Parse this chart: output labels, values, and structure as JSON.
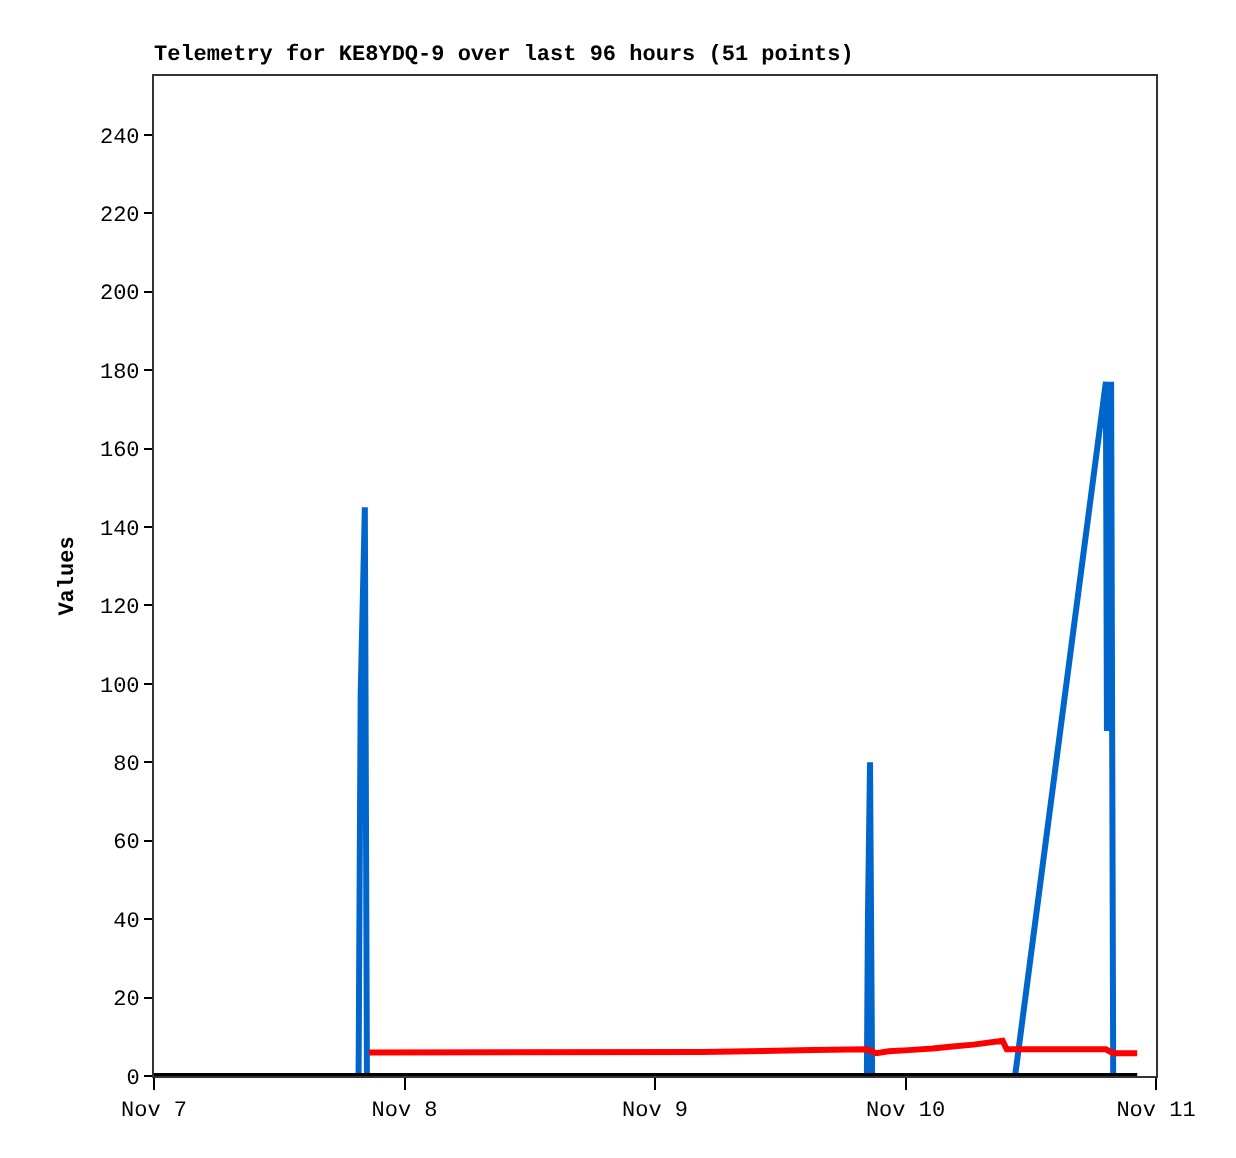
{
  "chart_data": {
    "type": "line",
    "title": "Telemetry for KE8YDQ-9 over last 96 hours (51 points)",
    "ylabel": "Values",
    "xlim": [
      "--11-07",
      "--11-11"
    ],
    "xticks": [
      {
        "value": "--11-07",
        "label": "Nov 7"
      },
      {
        "value": "--11-08",
        "label": "Nov 8"
      },
      {
        "value": "--11-09",
        "label": "Nov 9"
      },
      {
        "value": "--11-10",
        "label": "Nov 10"
      },
      {
        "value": "--11-11",
        "label": "Nov 11"
      }
    ],
    "ylim": [
      0,
      255
    ],
    "yticks": [
      0,
      20,
      40,
      60,
      80,
      100,
      120,
      140,
      160,
      180,
      200,
      220,
      240
    ],
    "grid": false,
    "marker": "none",
    "line_style": "solid",
    "series": [
      {
        "color": "#0066cc",
        "x": [
          "--11-07T19:36",
          "--11-07T19:42",
          "--11-07T19:48",
          "--11-07T20:12",
          "--11-07T20:24",
          "--11-09T20:18",
          "--11-09T20:24",
          "--11-09T20:36",
          "--11-09T20:48",
          "--11-10T10:30",
          "--11-10T19:12",
          "--11-10T19:18",
          "--11-10T19:30",
          "--11-10T19:42",
          "--11-10T19:54"
        ],
        "values": [
          0,
          49,
          97,
          145,
          0,
          0,
          40,
          80,
          0,
          0,
          177,
          88,
          112,
          177,
          0
        ]
      },
      {
        "color": "#ff0000",
        "x": [
          "--11-07T20:36",
          "--11-09T04:30",
          "--11-09T15:06",
          "--11-09T20:18",
          "--11-09T21:12",
          "--11-09T22:24",
          "--11-10T00:18",
          "--11-10T02:36",
          "--11-10T04:30",
          "--11-10T06:30",
          "--11-10T09:18",
          "--11-10T09:42",
          "--11-10T19:12",
          "--11-10T19:54",
          "--11-10T22:12"
        ],
        "values": [
          6.0,
          6.1,
          6.6,
          6.8,
          5.8,
          6.3,
          6.6,
          7.0,
          7.5,
          8.0,
          9.0,
          6.8,
          6.8,
          5.8,
          5.8
        ]
      },
      {
        "color": "#000000",
        "x": [
          "--11-07T00:00",
          "--11-10T22:12"
        ],
        "values": [
          0,
          0
        ]
      }
    ]
  }
}
